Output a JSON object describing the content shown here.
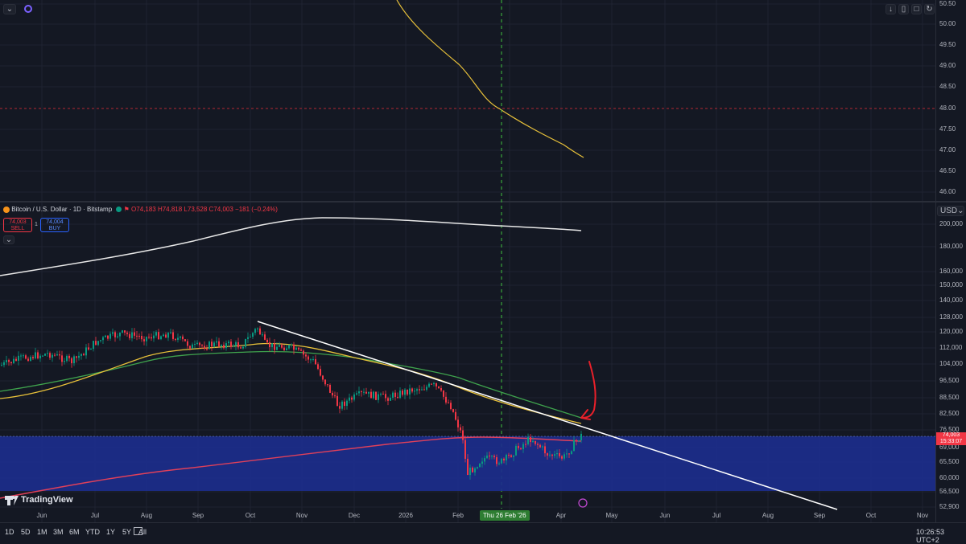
{
  "header": {
    "symbol": "Bitcoin / U.S. Dollar · 1D · Bitstamp",
    "ohlc": "O74,183 H74,818 L73,528 C74,003 −181 (−0.24%)",
    "sell_price": "74,003",
    "sell_label": "SELL",
    "buy_price": "74,004",
    "buy_label": "BUY",
    "spread": "1",
    "currency": "USD",
    "chevron_icon": "chevron-down-icon"
  },
  "indicator_pane": {
    "ticks": [
      "50.50",
      "50.00",
      "49.50",
      "49.00",
      "48.50",
      "48.00",
      "47.50",
      "47.00",
      "46.50",
      "46.00"
    ],
    "toolbar_icons": [
      "arrow-down-icon",
      "trash-icon",
      "maximize-icon",
      "refresh-icon"
    ]
  },
  "price_axis": {
    "ticks": [
      "200,000",
      "180,000",
      "160,000",
      "150,000",
      "140,000",
      "128,000",
      "120,000",
      "112,000",
      "104,000",
      "96,500",
      "88,500",
      "82,500",
      "76,500",
      "69,000",
      "65,500",
      "60,000",
      "56,500",
      "52,900"
    ],
    "last_price": "74,003",
    "countdown": "15:33:07"
  },
  "time_axis": {
    "ticks": [
      "Jun",
      "Jul",
      "Aug",
      "Sep",
      "Oct",
      "Nov",
      "Dec",
      "2026",
      "Feb",
      "Mar",
      "Apr",
      "May",
      "Jun",
      "Jul",
      "Aug",
      "Sep",
      "Oct",
      "Nov"
    ],
    "crosshair_label": "Thu 26 Feb '26"
  },
  "bottom_bar": {
    "ranges": [
      "1D",
      "5D",
      "1M",
      "3M",
      "6M",
      "YTD",
      "1Y",
      "5Y",
      "All"
    ],
    "clock": "10:26:53 UTC+2"
  },
  "branding": {
    "name": "TradingView"
  },
  "colors": {
    "background": "#141823",
    "up": "#089981",
    "down": "#f23645",
    "zone": "#1c2e8c",
    "sma_yellow": "#e8c13a",
    "sma_green": "#3fa34d",
    "sma_red": "#e0405a",
    "trendline": "#ffffff",
    "annotation": "#e8202a",
    "crosshair": "#3fbf3f"
  }
}
